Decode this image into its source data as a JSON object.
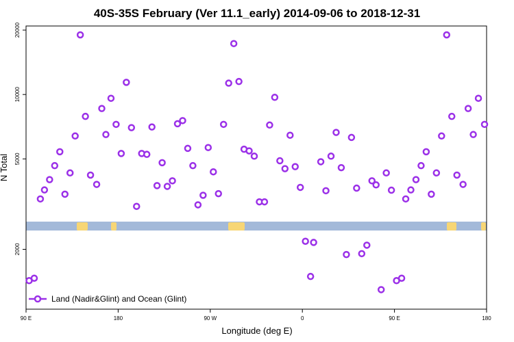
{
  "chart_data": {
    "type": "scatter",
    "title": "40S-35S February (Ver 11.1_early)   2014-09-06 to 2018-12-31",
    "xlabel": "Longitude (deg E)",
    "ylabel": "N Total",
    "x_ticks": [
      {
        "value": 90,
        "label": "90 E"
      },
      {
        "value": 180,
        "label": "180"
      },
      {
        "value": 270,
        "label": "90 W"
      },
      {
        "value": 360,
        "label": "0"
      },
      {
        "value": 450,
        "label": "90 E"
      },
      {
        "value": 540,
        "label": "180"
      }
    ],
    "y_ticks_upper": [
      {
        "value": 5000,
        "label": "5000"
      },
      {
        "value": 10000,
        "label": "10000"
      },
      {
        "value": 20000,
        "label": "20000"
      }
    ],
    "y_ticks_lower": [
      {
        "value": 2000,
        "label": "2000"
      }
    ],
    "xlim": [
      90,
      540
    ],
    "ylim_upper": [
      2700,
      20600
    ],
    "ylim_lower": [
      1000,
      2400
    ],
    "y_scale": "log",
    "grid": false,
    "legend": {
      "position": "bottom-left",
      "entries": [
        {
          "name": "Land (Nadir&Glint) and Ocean (Glint)",
          "color": "#9b30e8"
        }
      ]
    },
    "series": [
      {
        "name": "Land (Nadir&Glint) and Ocean (Glint)",
        "color": "#9b30e8",
        "points": [
          [
            93,
            1380
          ],
          [
            98,
            1420
          ],
          [
            104,
            3250
          ],
          [
            108,
            3580
          ],
          [
            113,
            4000
          ],
          [
            118,
            4650
          ],
          [
            123,
            5400
          ],
          [
            128,
            3420
          ],
          [
            133,
            4300
          ],
          [
            138,
            6400
          ],
          [
            143,
            19000
          ],
          [
            148,
            7900
          ],
          [
            153,
            4200
          ],
          [
            159,
            3800
          ],
          [
            164,
            8600
          ],
          [
            168,
            6500
          ],
          [
            173,
            9600
          ],
          [
            178,
            7250
          ],
          [
            183,
            5300
          ],
          [
            188,
            11400
          ],
          [
            193,
            7000
          ],
          [
            198,
            3000
          ],
          [
            203,
            5300
          ],
          [
            208,
            5250
          ],
          [
            213,
            7050
          ],
          [
            218,
            3750
          ],
          [
            223,
            4800
          ],
          [
            228,
            3720
          ],
          [
            233,
            3950
          ],
          [
            238,
            7300
          ],
          [
            243,
            7550
          ],
          [
            248,
            5600
          ],
          [
            253,
            4650
          ],
          [
            258,
            3050
          ],
          [
            263,
            3380
          ],
          [
            268,
            5650
          ],
          [
            273,
            4350
          ],
          [
            278,
            3440
          ],
          [
            283,
            7250
          ],
          [
            288,
            11300
          ],
          [
            293,
            17300
          ],
          [
            298,
            11500
          ],
          [
            303,
            5550
          ],
          [
            308,
            5450
          ],
          [
            313,
            5150
          ],
          [
            318,
            3150
          ],
          [
            323,
            3150
          ],
          [
            328,
            7200
          ],
          [
            333,
            9700
          ],
          [
            338,
            4900
          ],
          [
            343,
            4500
          ],
          [
            348,
            6450
          ],
          [
            353,
            4600
          ],
          [
            358,
            3680
          ],
          [
            363,
            2200
          ],
          [
            368,
            1450
          ],
          [
            371,
            2170
          ],
          [
            378,
            4850
          ],
          [
            383,
            3550
          ],
          [
            388,
            5150
          ],
          [
            393,
            6650
          ],
          [
            398,
            4550
          ],
          [
            403,
            1880
          ],
          [
            408,
            6300
          ],
          [
            413,
            3650
          ],
          [
            418,
            1900
          ],
          [
            423,
            2100
          ],
          [
            428,
            3950
          ],
          [
            432,
            3780
          ],
          [
            437,
            1240
          ],
          [
            442,
            4300
          ],
          [
            447,
            3570
          ],
          [
            452,
            1380
          ],
          [
            457,
            1420
          ],
          [
            461,
            3250
          ],
          [
            466,
            3580
          ],
          [
            471,
            4000
          ],
          [
            476,
            4650
          ],
          [
            481,
            5400
          ],
          [
            486,
            3420
          ],
          [
            491,
            4300
          ],
          [
            496,
            6400
          ],
          [
            501,
            19000
          ],
          [
            506,
            7900
          ],
          [
            511,
            4200
          ],
          [
            517,
            3800
          ],
          [
            522,
            8600
          ],
          [
            527,
            6500
          ],
          [
            532,
            9600
          ],
          [
            538,
            7250
          ]
        ]
      }
    ]
  }
}
